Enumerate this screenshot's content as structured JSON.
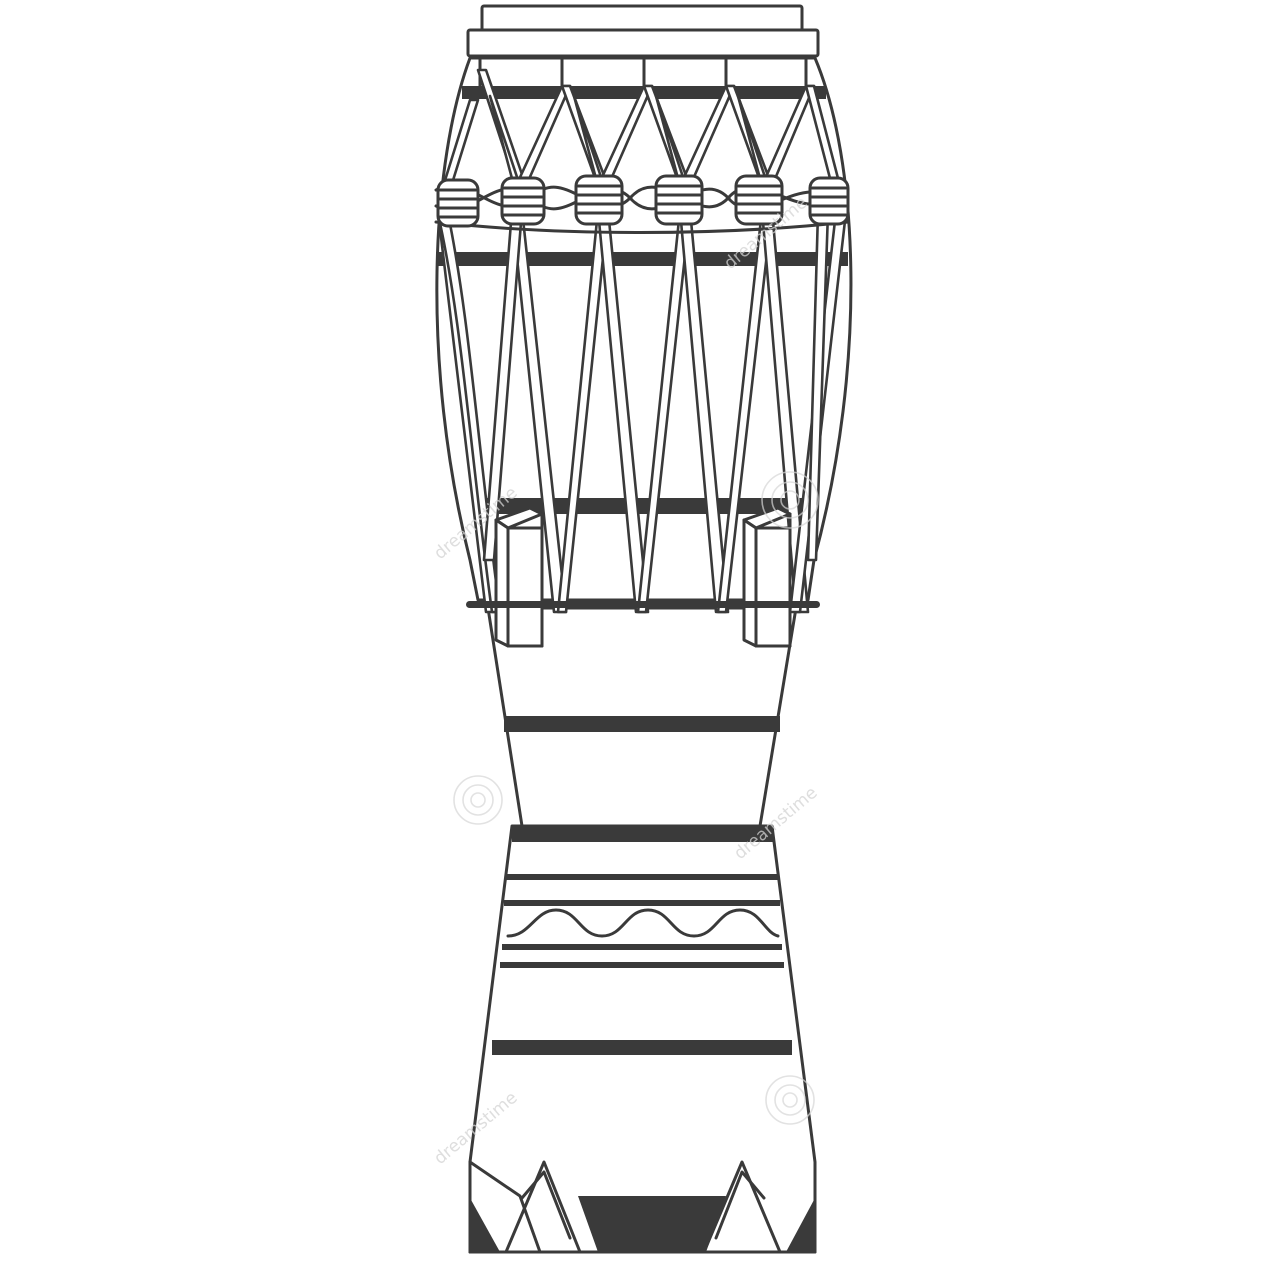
{
  "illustration": {
    "subject": "drum",
    "style": "line-art",
    "colors": {
      "stroke": "#3a3a3a",
      "fill": "#ffffff",
      "background": "#ffffff",
      "watermark": "#d6d6d6"
    }
  },
  "watermark": {
    "brand_text": "dreamstime",
    "logo_icon": "spiral-logo-icon"
  }
}
